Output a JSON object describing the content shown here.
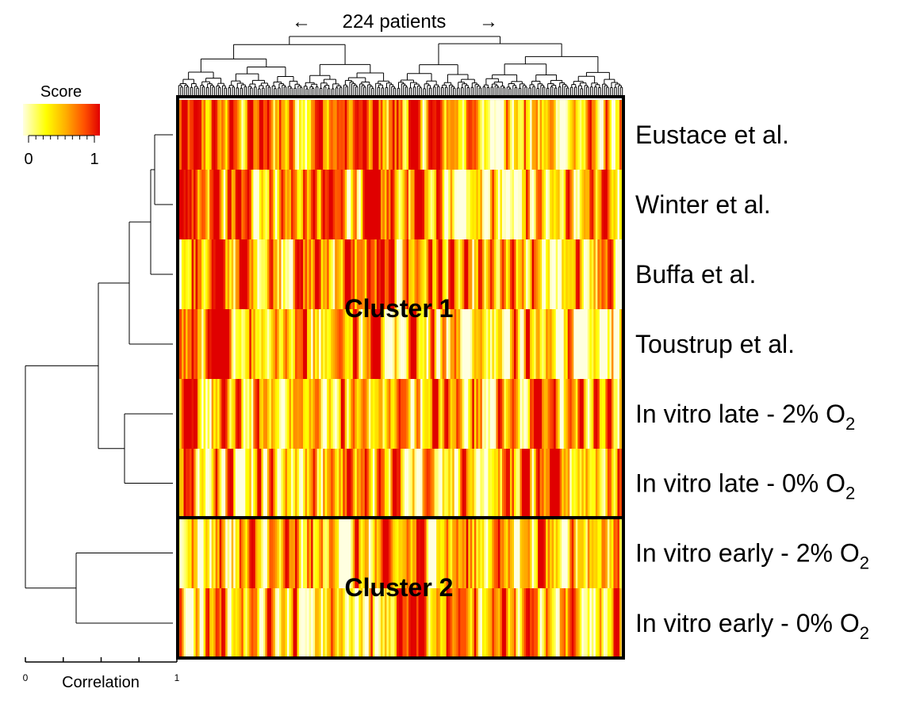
{
  "chart_data": {
    "type": "heatmap",
    "top_label": "224 patients",
    "n_patients": 224,
    "rows": [
      "Eustace et al.",
      "Winter et al.",
      "Buffa et al.",
      "Toustrup et al.",
      "In vitro late - 2% O2",
      "In vitro late - 0% O2",
      "In vitro early - 2% O2",
      "In vitro early - 0% O2"
    ],
    "row_labels": [
      {
        "text": "Eustace et al.",
        "sub": ""
      },
      {
        "text": "Winter et al.",
        "sub": ""
      },
      {
        "text": "Buffa et al.",
        "sub": ""
      },
      {
        "text": "Toustrup et al.",
        "sub": ""
      },
      {
        "text": "In vitro late - 2% O",
        "sub": "2"
      },
      {
        "text": "In vitro late - 0% O",
        "sub": "2"
      },
      {
        "text": "In vitro early - 2% O",
        "sub": "2"
      },
      {
        "text": "In vitro early - 0% O",
        "sub": "2"
      }
    ],
    "clusters": [
      {
        "name": "Cluster 1",
        "rows": [
          0,
          1,
          2,
          3,
          4,
          5
        ]
      },
      {
        "name": "Cluster 2",
        "rows": [
          6,
          7
        ]
      }
    ],
    "color_key": {
      "title": "Score",
      "min_label": "0",
      "max_label": "1",
      "range": [
        0,
        1
      ],
      "colors": [
        "#ffffe0",
        "#ffff00",
        "#ffb000",
        "#ff5000",
        "#e00000"
      ]
    },
    "row_dendrogram": {
      "axis_label": "Correlation",
      "axis_min_label": "0",
      "axis_max_label": "1",
      "range": [
        0,
        1
      ]
    },
    "column_dendrogram": true
  }
}
